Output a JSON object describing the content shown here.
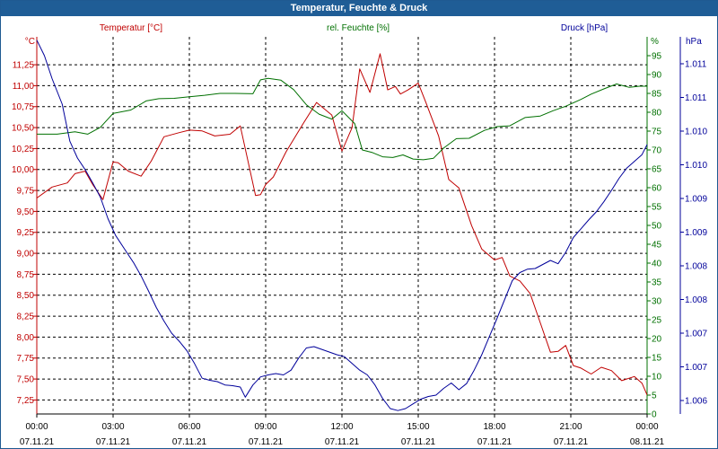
{
  "window": {
    "title": "Temperatur, Feuchte & Druck"
  },
  "chart_data": {
    "type": "line",
    "title": "Temperatur, Feuchte & Druck",
    "colors": {
      "temperature": "#c00000",
      "humidity": "#007000",
      "pressure": "#00009a",
      "grid": "#000000"
    },
    "x_axis": {
      "ticks": [
        {
          "time": "00:00",
          "date": "07.11.21"
        },
        {
          "time": "03:00",
          "date": "07.11.21"
        },
        {
          "time": "06:00",
          "date": "07.11.21"
        },
        {
          "time": "09:00",
          "date": "07.11.21"
        },
        {
          "time": "12:00",
          "date": "07.11.21"
        },
        {
          "time": "15:00",
          "date": "07.11.21"
        },
        {
          "time": "18:00",
          "date": "07.11.21"
        },
        {
          "time": "21:00",
          "date": "07.11.21"
        },
        {
          "time": "00:00",
          "date": "08.11.21"
        }
      ],
      "range_hours": [
        0,
        24
      ]
    },
    "axes": {
      "temperature": {
        "unit": "°C",
        "legend": "Temperatur [°C]",
        "range": [
          7.083,
          11.583
        ],
        "ticks": [
          "11,25",
          "11,00",
          "10,75",
          "10,50",
          "10,25",
          "10,00",
          "9,75",
          "9,50",
          "9,25",
          "9,00",
          "8,75",
          "8,50",
          "8,25",
          "8,00",
          "7,75",
          "7,50",
          "7,25"
        ],
        "tick_values": [
          11.25,
          11.0,
          10.75,
          10.5,
          10.25,
          10.0,
          9.75,
          9.5,
          9.25,
          9.0,
          8.75,
          8.5,
          8.25,
          8.0,
          7.75,
          7.5,
          7.25
        ]
      },
      "humidity": {
        "unit": "%",
        "legend": "rel. Feuchte [%]",
        "range": [
          0,
          100
        ],
        "ticks": [
          "95",
          "90",
          "85",
          "80",
          "75",
          "70",
          "65",
          "60",
          "55",
          "50",
          "45",
          "40",
          "35",
          "30",
          "25",
          "20",
          "15",
          "10",
          "5",
          "0"
        ],
        "tick_values": [
          95,
          90,
          85,
          80,
          75,
          70,
          65,
          60,
          55,
          50,
          45,
          40,
          35,
          30,
          25,
          20,
          15,
          10,
          5,
          0
        ]
      },
      "pressure": {
        "unit": "hPa",
        "legend": "Druck [hPa]",
        "range": [
          1005.8,
          1011.4
        ],
        "ticks": [
          "1.011",
          "1.011",
          "1.010",
          "1.010",
          "1.009",
          "1.009",
          "1.008",
          "1.008",
          "1.007",
          "1.007",
          "1.006"
        ],
        "tick_values": [
          1011.0,
          1010.5,
          1010.0,
          1009.5,
          1009.0,
          1008.5,
          1008.0,
          1007.5,
          1007.0,
          1006.5,
          1006.0
        ]
      }
    },
    "series": [
      {
        "name": "Temperatur",
        "axis": "temperature",
        "x": [
          0,
          0.6,
          1.2,
          1.5,
          1.9,
          2.2,
          2.6,
          3.0,
          3.2,
          3.6,
          4.1,
          4.5,
          5.0,
          5.6,
          6.0,
          6.5,
          7.0,
          7.6,
          8.0,
          8.6,
          8.8,
          9.0,
          9.3,
          9.8,
          10.5,
          11.0,
          11.6,
          12.0,
          12.4,
          12.7,
          13.1,
          13.5,
          13.8,
          14.1,
          14.3,
          14.6,
          15.0,
          15.3,
          15.8,
          16.2,
          16.6,
          17.1,
          17.5,
          18.0,
          18.3,
          18.6,
          19.0,
          19.4,
          19.8,
          20.2,
          20.5,
          20.8,
          21.1,
          21.4,
          21.8,
          22.2,
          22.6,
          23.0,
          23.5,
          23.8,
          24.0
        ],
        "values": [
          9.66,
          9.79,
          9.84,
          9.95,
          9.98,
          9.82,
          9.64,
          10.09,
          10.08,
          9.98,
          9.92,
          10.1,
          10.39,
          10.44,
          10.47,
          10.46,
          10.4,
          10.42,
          10.52,
          9.69,
          9.7,
          9.82,
          9.91,
          10.21,
          10.56,
          10.8,
          10.65,
          10.22,
          10.5,
          11.2,
          10.92,
          11.38,
          10.95,
          10.99,
          10.9,
          10.95,
          11.03,
          10.8,
          10.4,
          9.88,
          9.78,
          9.33,
          9.05,
          8.92,
          8.95,
          8.73,
          8.67,
          8.52,
          8.17,
          7.82,
          7.83,
          7.9,
          7.66,
          7.63,
          7.56,
          7.64,
          7.6,
          7.48,
          7.53,
          7.45,
          7.31
        ]
      },
      {
        "name": "rel. Feuchte",
        "axis": "humidity",
        "x": [
          0,
          0.8,
          1.5,
          2.0,
          2.5,
          3.0,
          3.7,
          4.3,
          4.8,
          5.4,
          6.0,
          6.6,
          7.2,
          7.8,
          8.5,
          8.8,
          9.1,
          9.6,
          10.1,
          10.6,
          11.1,
          11.6,
          12.0,
          12.5,
          12.8,
          13.2,
          13.6,
          14.0,
          14.4,
          14.8,
          15.2,
          15.6,
          16.0,
          16.5,
          17.0,
          17.6,
          18.1,
          18.6,
          19.2,
          19.8,
          20.3,
          20.8,
          21.4,
          21.8,
          22.3,
          22.8,
          23.3,
          23.7,
          24.0
        ],
        "values": [
          74.2,
          74.2,
          74.8,
          74.2,
          76.0,
          79.7,
          80.6,
          83.0,
          83.6,
          83.7,
          84.1,
          84.5,
          85.0,
          85.0,
          84.9,
          88.6,
          89.0,
          88.5,
          86.0,
          82.0,
          79.5,
          78.2,
          80.4,
          77.0,
          70.0,
          69.3,
          68.2,
          68.0,
          68.7,
          67.6,
          67.4,
          67.8,
          70.5,
          73.0,
          73.1,
          75.2,
          76.2,
          76.4,
          78.6,
          79.0,
          80.4,
          81.6,
          83.4,
          84.8,
          86.2,
          87.5,
          86.6,
          86.9,
          86.9
        ]
      },
      {
        "name": "Druck",
        "axis": "pressure",
        "x": [
          0,
          0.3,
          0.6,
          1.0,
          1.3,
          1.6,
          1.9,
          2.2,
          2.5,
          2.8,
          3.1,
          3.5,
          3.8,
          4.1,
          4.4,
          4.7,
          5.0,
          5.3,
          5.6,
          5.9,
          6.2,
          6.5,
          6.8,
          7.1,
          7.4,
          7.7,
          8.0,
          8.2,
          8.5,
          8.8,
          9.1,
          9.4,
          9.7,
          10.0,
          10.3,
          10.6,
          10.9,
          11.2,
          11.5,
          11.8,
          12.1,
          12.4,
          12.7,
          13.0,
          13.3,
          13.6,
          13.9,
          14.2,
          14.5,
          14.8,
          15.1,
          15.4,
          15.7,
          16.0,
          16.3,
          16.6,
          16.9,
          17.2,
          17.5,
          17.8,
          18.1,
          18.4,
          18.7,
          19.0,
          19.3,
          19.6,
          19.9,
          20.2,
          20.5,
          20.8,
          21.1,
          21.4,
          21.7,
          22.0,
          22.3,
          22.6,
          22.9,
          23.2,
          23.5,
          23.8,
          24.0
        ],
        "values": [
          1011.35,
          1011.12,
          1010.78,
          1010.4,
          1009.85,
          1009.6,
          1009.43,
          1009.23,
          1009.02,
          1008.7,
          1008.45,
          1008.22,
          1008.05,
          1007.85,
          1007.62,
          1007.38,
          1007.18,
          1007.0,
          1006.88,
          1006.74,
          1006.55,
          1006.33,
          1006.3,
          1006.28,
          1006.23,
          1006.22,
          1006.2,
          1006.05,
          1006.23,
          1006.35,
          1006.38,
          1006.4,
          1006.38,
          1006.45,
          1006.63,
          1006.78,
          1006.8,
          1006.76,
          1006.72,
          1006.68,
          1006.65,
          1006.55,
          1006.45,
          1006.38,
          1006.23,
          1006.03,
          1005.88,
          1005.85,
          1005.88,
          1005.95,
          1006.02,
          1006.06,
          1006.08,
          1006.18,
          1006.26,
          1006.16,
          1006.25,
          1006.45,
          1006.68,
          1006.95,
          1007.22,
          1007.5,
          1007.78,
          1007.9,
          1007.95,
          1007.96,
          1008.02,
          1008.08,
          1008.03,
          1008.2,
          1008.42,
          1008.55,
          1008.68,
          1008.8,
          1008.95,
          1009.12,
          1009.3,
          1009.45,
          1009.55,
          1009.65,
          1009.8
        ]
      }
    ]
  }
}
